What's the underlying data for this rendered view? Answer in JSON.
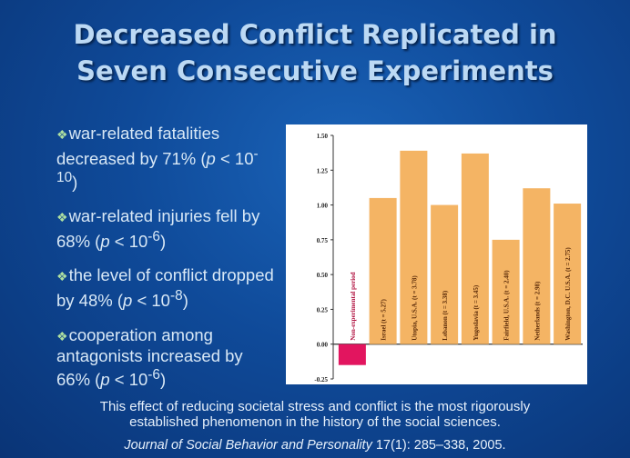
{
  "slide": {
    "title_line1": "Decreased Conflict Replicated in",
    "title_line2": "Seven Consecutive Experiments",
    "bullets": [
      {
        "prefix": "war-related fatalities decreased by 71% (",
        "p": "p",
        "mid": " < 10",
        "exp": "-10",
        "suffix": ")"
      },
      {
        "prefix": "war-related injuries fell by 68% (",
        "p": "p",
        "mid": " < 10",
        "exp": "-6",
        "suffix": ")"
      },
      {
        "prefix": "the level of conflict dropped by 48% (",
        "p": "p",
        "mid": " < 10",
        "exp": "-8",
        "suffix": ")"
      },
      {
        "prefix": "cooperation among antagonists increased by 66% (",
        "p": "p",
        "mid": " < 10",
        "exp": "-6",
        "suffix": ")"
      }
    ],
    "bullet_marker": "❖",
    "footer_line1": "This effect of reducing societal stress and conflict is the most rigorously",
    "footer_line2": "established phenomenon in the history of the social sciences.",
    "citation_journal": "Journal of Social Behavior and Personality",
    "citation_rest": " 17(1): 285–338, 2005."
  },
  "chart_data": {
    "type": "bar",
    "categories": [
      "Non-experimental period",
      "Israel (t = 5.27)",
      "Utopia, U.S.A. (t = 3.78)",
      "Lebanon (t = 3.38)",
      "Yugoslavia (t = 3.45)",
      "Fairfield, U.S.A. (t = 2.40)",
      "Netherlands (t = 2.98)",
      "Washington, D.C. U.S.A. (t = 2.75)"
    ],
    "values": [
      -0.15,
      1.05,
      1.39,
      1.0,
      1.37,
      0.75,
      1.12,
      1.01
    ],
    "ylim": [
      -0.25,
      1.5
    ],
    "yticks": [
      "1.50",
      "1.25",
      "1.00",
      "0.75",
      "0.50",
      "0.25",
      "0.00",
      "-0.25"
    ],
    "ytick_values": [
      1.5,
      1.25,
      1.0,
      0.75,
      0.5,
      0.25,
      0.0,
      -0.25
    ],
    "colors": {
      "negative": "#e2155f",
      "positive": "#f4b464",
      "axis": "#333333"
    }
  }
}
